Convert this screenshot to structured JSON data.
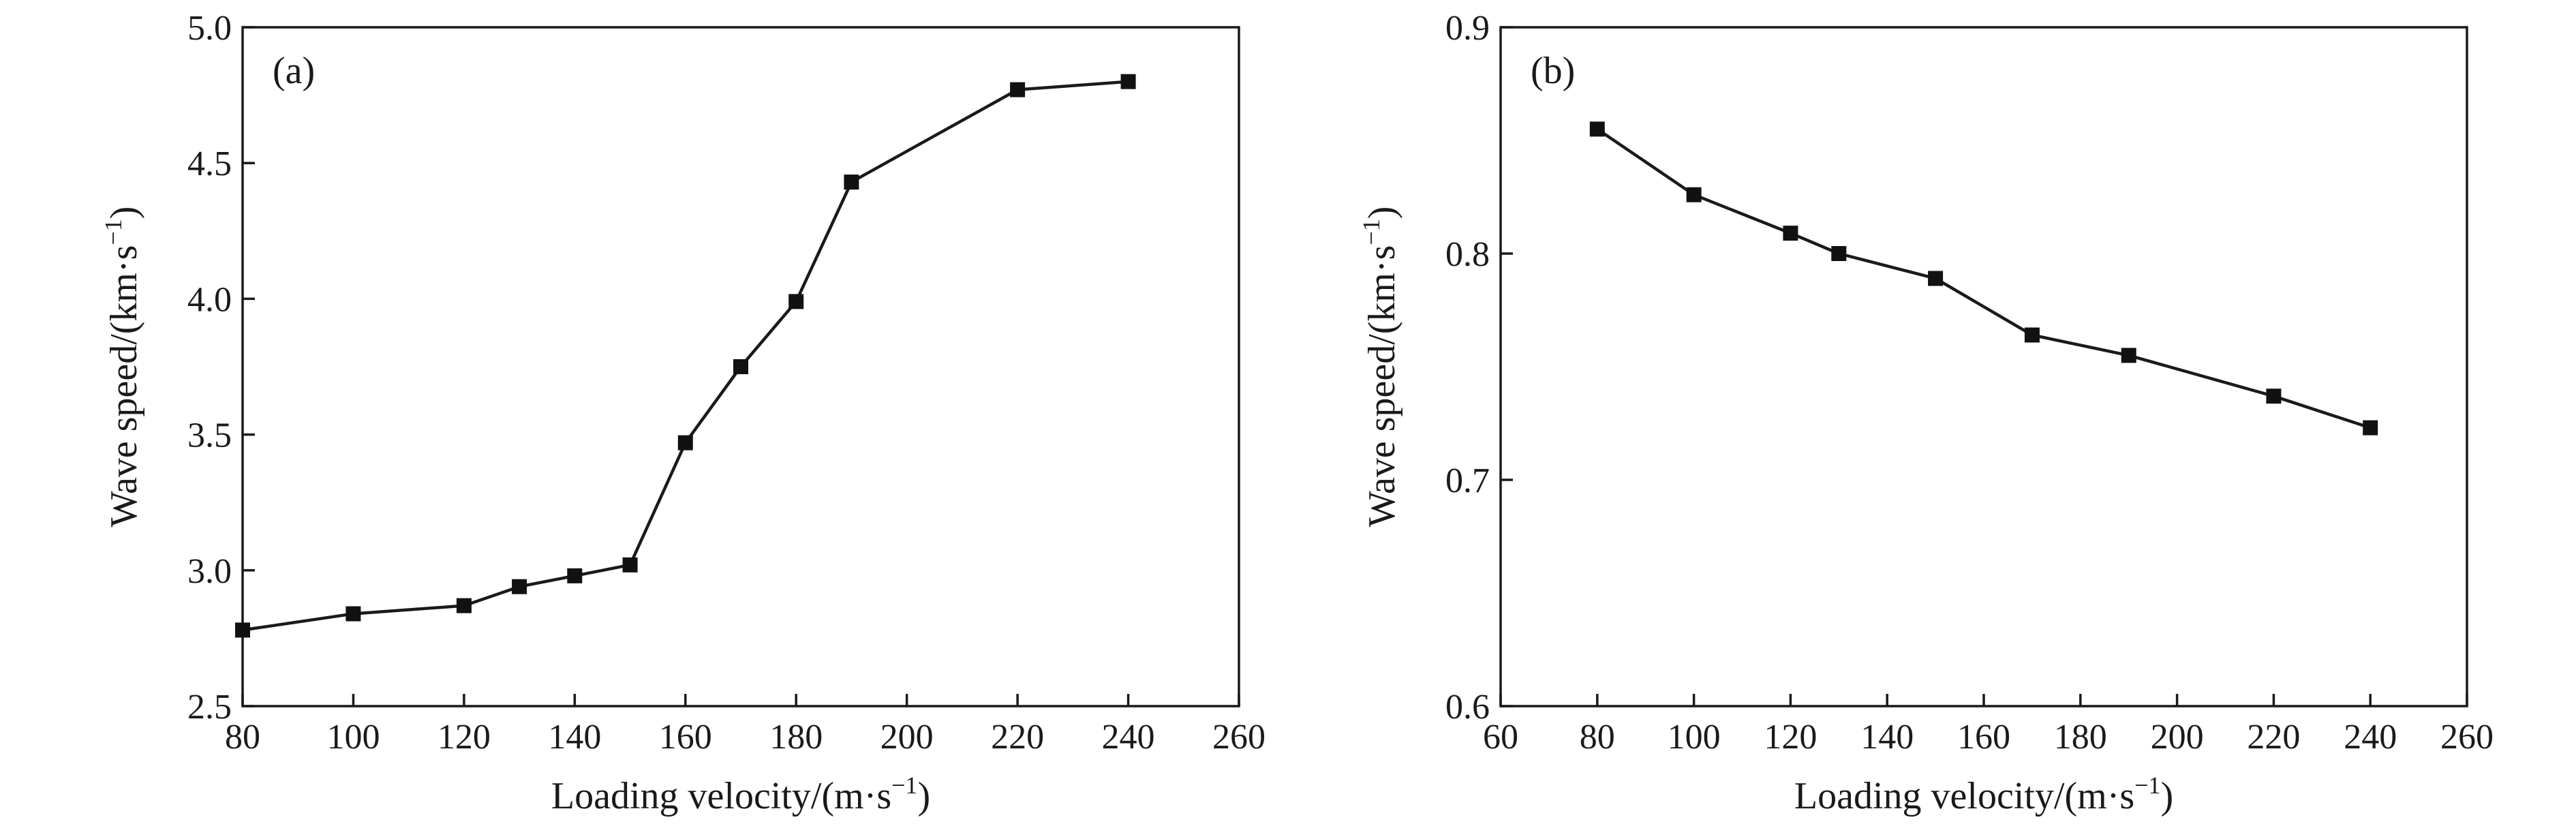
{
  "chart_data": [
    {
      "type": "line",
      "panel_label": "(a)",
      "xlabel": "Loading velocity/(m·s",
      "xlabel_sup": "−1",
      "xlabel_tail": ")",
      "ylabel": "Wave speed/(km·s",
      "ylabel_sup": "−1",
      "ylabel_tail": ")",
      "xlim": [
        80,
        260
      ],
      "ylim": [
        2.5,
        5.0
      ],
      "xticks": [
        80,
        100,
        120,
        140,
        160,
        180,
        200,
        220,
        240,
        260
      ],
      "xtick_labels": [
        "80",
        "100",
        "120",
        "140",
        "160",
        "180",
        "200",
        "220",
        "240",
        "260"
      ],
      "yticks": [
        2.5,
        3.0,
        3.5,
        4.0,
        4.5,
        5.0
      ],
      "ytick_labels": [
        "2.5",
        "3.0",
        "3.5",
        "4.0",
        "4.5",
        "5.0"
      ],
      "grid": false,
      "marker": "square",
      "x": [
        80,
        100,
        120,
        130,
        140,
        150,
        160,
        170,
        180,
        190,
        220,
        240
      ],
      "y": [
        2.78,
        2.84,
        2.87,
        2.94,
        2.98,
        3.02,
        3.47,
        3.75,
        3.99,
        4.43,
        4.77,
        4.8
      ]
    },
    {
      "type": "line",
      "panel_label": "(b)",
      "xlabel": "Loading velocity/(m·s",
      "xlabel_sup": "−1",
      "xlabel_tail": ")",
      "ylabel": "Wave speed/(km·s",
      "ylabel_sup": "−1",
      "ylabel_tail": ")",
      "xlim": [
        60,
        260
      ],
      "ylim": [
        0.6,
        0.9
      ],
      "xticks": [
        60,
        80,
        100,
        120,
        140,
        160,
        180,
        200,
        220,
        240,
        260
      ],
      "xtick_labels": [
        "60",
        "80",
        "100",
        "120",
        "140",
        "160",
        "180",
        "200",
        "220",
        "240",
        "260"
      ],
      "yticks": [
        0.6,
        0.7,
        0.8,
        0.9
      ],
      "ytick_labels": [
        "0.6",
        "0.7",
        "0.8",
        "0.9"
      ],
      "grid": false,
      "marker": "square",
      "x": [
        80,
        100,
        120,
        130,
        150,
        170,
        190,
        220,
        240
      ],
      "y": [
        0.855,
        0.826,
        0.809,
        0.8,
        0.789,
        0.764,
        0.755,
        0.737,
        0.723
      ]
    }
  ]
}
